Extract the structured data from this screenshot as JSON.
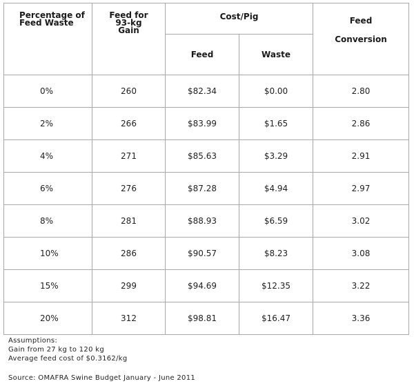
{
  "table": {
    "headers": {
      "percentage_line1": "Percentage of",
      "percentage_line2": "Feed Waste",
      "feed_line1": "Feed for",
      "feed_line2": "93-kg",
      "feed_line3": "Gain",
      "cost_pig": "Cost/Pig",
      "cost_feed": "Feed",
      "cost_waste": "Waste",
      "conversion_line1": "Feed",
      "conversion_line2": "Conversion"
    },
    "rows": [
      {
        "pct": "0%",
        "feed": "260",
        "cost_feed": "$82.34",
        "cost_waste": "$0.00",
        "conversion": "2.80"
      },
      {
        "pct": "2%",
        "feed": "266",
        "cost_feed": "$83.99",
        "cost_waste": "$1.65",
        "conversion": "2.86"
      },
      {
        "pct": "4%",
        "feed": "271",
        "cost_feed": "$85.63",
        "cost_waste": "$3.29",
        "conversion": "2.91"
      },
      {
        "pct": "6%",
        "feed": "276",
        "cost_feed": "$87.28",
        "cost_waste": "$4.94",
        "conversion": "2.97"
      },
      {
        "pct": "8%",
        "feed": "281",
        "cost_feed": "$88.93",
        "cost_waste": "$6.59",
        "conversion": "3.02"
      },
      {
        "pct": "10%",
        "feed": "286",
        "cost_feed": "$90.57",
        "cost_waste": "$8.23",
        "conversion": "3.08"
      },
      {
        "pct": "15%",
        "feed": "299",
        "cost_feed": "$94.69",
        "cost_waste": "$12.35",
        "conversion": "3.22"
      },
      {
        "pct": "20%",
        "feed": "312",
        "cost_feed": "$98.81",
        "cost_waste": "$16.47",
        "conversion": "3.36"
      }
    ]
  },
  "notes": {
    "title": "Assumptions:",
    "line1": "Gain from 27 kg to 120 kg",
    "line2": "Average feed cost of $0.3162/kg"
  },
  "source": "Source: OMAFRA Swine Budget January - June 2011"
}
